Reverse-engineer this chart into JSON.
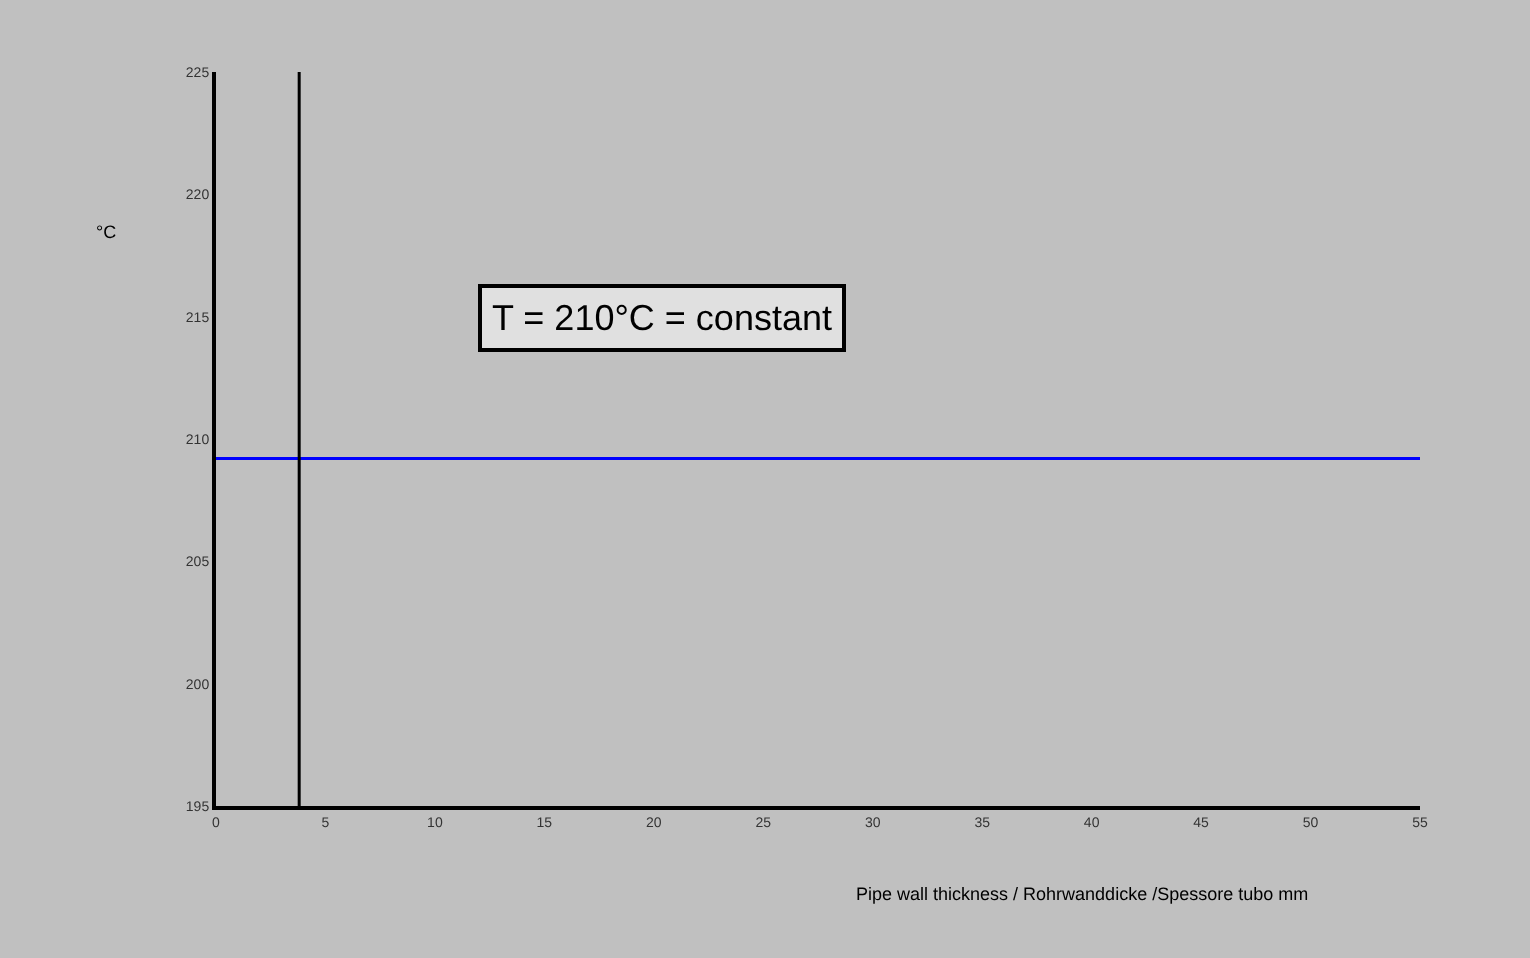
{
  "chart_data": {
    "type": "line",
    "x": [
      0,
      55
    ],
    "series": [
      {
        "color": "#0000ff",
        "values": [
          209.2,
          209.2
        ]
      }
    ],
    "xlim": [
      0,
      55
    ],
    "xticks": [
      0,
      5,
      10,
      15,
      20,
      25,
      30,
      35,
      40,
      45,
      50,
      55
    ],
    "ylim": [
      195,
      225
    ],
    "yticks": [
      195,
      200,
      205,
      210,
      215,
      220,
      225
    ],
    "xlabel": "Pipe wall thickness / Rohrwanddicke /Spessore tubo mm",
    "ylabel": "°C",
    "ref_lines": [
      {
        "axis": "x",
        "value": 3.8,
        "color": "#000000"
      }
    ],
    "annotations": [
      "T = 210°C = constant"
    ],
    "grid": false
  }
}
